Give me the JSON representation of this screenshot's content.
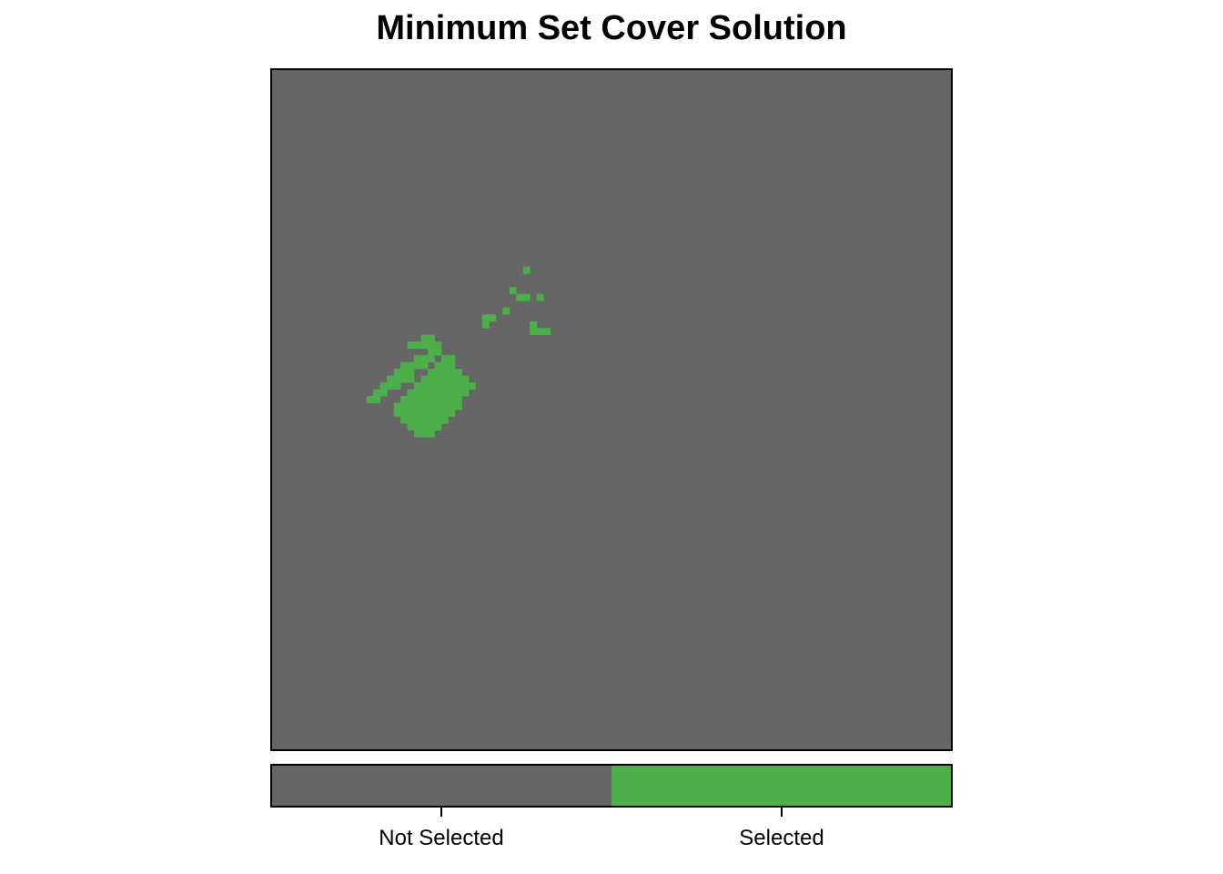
{
  "chart_data": {
    "type": "heatmap",
    "title": "Minimum Set Cover Solution",
    "xlabel": "",
    "ylabel": "",
    "grid": false,
    "legend": {
      "placement": "bottom",
      "entries": [
        {
          "label": "Not Selected",
          "value": 0,
          "color": "#666666"
        },
        {
          "label": "Selected",
          "value": 1,
          "color": "#4daf4a"
        }
      ]
    },
    "raster": {
      "cols": 100,
      "rows": 100,
      "values": [
        0,
        1
      ],
      "selected_cells": [
        [
          37,
          29
        ],
        [
          35,
          32
        ],
        [
          39,
          33
        ],
        [
          37,
          33
        ],
        [
          36,
          33
        ],
        [
          34,
          35
        ],
        [
          32,
          36
        ],
        [
          31,
          36
        ],
        [
          31,
          37
        ],
        [
          38,
          37
        ],
        [
          38,
          38
        ],
        [
          40,
          38
        ],
        [
          39,
          38
        ],
        [
          22,
          39
        ],
        [
          23,
          39
        ],
        [
          22,
          40
        ],
        [
          23,
          40
        ],
        [
          24,
          40
        ],
        [
          21,
          40
        ],
        [
          20,
          40
        ],
        [
          23,
          41
        ],
        [
          24,
          41
        ],
        [
          23,
          42
        ],
        [
          22,
          42
        ],
        [
          21,
          42
        ],
        [
          21,
          43
        ],
        [
          22,
          43
        ],
        [
          20,
          43
        ],
        [
          19,
          43
        ],
        [
          18,
          44
        ],
        [
          19,
          44
        ],
        [
          20,
          44
        ],
        [
          17,
          45
        ],
        [
          18,
          45
        ],
        [
          19,
          45
        ],
        [
          20,
          45
        ],
        [
          16,
          46
        ],
        [
          17,
          46
        ],
        [
          18,
          46
        ],
        [
          15,
          47
        ],
        [
          16,
          47
        ],
        [
          15,
          48
        ],
        [
          14,
          48
        ],
        [
          25,
          42
        ],
        [
          26,
          42
        ],
        [
          24,
          43
        ],
        [
          25,
          43
        ],
        [
          26,
          43
        ],
        [
          23,
          44
        ],
        [
          24,
          44
        ],
        [
          25,
          44
        ],
        [
          26,
          44
        ],
        [
          27,
          44
        ],
        [
          22,
          45
        ],
        [
          23,
          45
        ],
        [
          24,
          45
        ],
        [
          25,
          45
        ],
        [
          26,
          45
        ],
        [
          27,
          45
        ],
        [
          28,
          45
        ],
        [
          21,
          46
        ],
        [
          22,
          46
        ],
        [
          23,
          46
        ],
        [
          24,
          46
        ],
        [
          25,
          46
        ],
        [
          26,
          46
        ],
        [
          27,
          46
        ],
        [
          28,
          46
        ],
        [
          29,
          46
        ],
        [
          20,
          47
        ],
        [
          21,
          47
        ],
        [
          22,
          47
        ],
        [
          23,
          47
        ],
        [
          24,
          47
        ],
        [
          25,
          47
        ],
        [
          26,
          47
        ],
        [
          27,
          47
        ],
        [
          28,
          47
        ],
        [
          19,
          48
        ],
        [
          20,
          48
        ],
        [
          21,
          48
        ],
        [
          22,
          48
        ],
        [
          23,
          48
        ],
        [
          24,
          48
        ],
        [
          25,
          48
        ],
        [
          26,
          48
        ],
        [
          27,
          48
        ],
        [
          18,
          49
        ],
        [
          19,
          49
        ],
        [
          20,
          49
        ],
        [
          21,
          49
        ],
        [
          22,
          49
        ],
        [
          23,
          49
        ],
        [
          24,
          49
        ],
        [
          25,
          49
        ],
        [
          26,
          49
        ],
        [
          27,
          49
        ],
        [
          18,
          50
        ],
        [
          19,
          50
        ],
        [
          20,
          50
        ],
        [
          21,
          50
        ],
        [
          22,
          50
        ],
        [
          23,
          50
        ],
        [
          24,
          50
        ],
        [
          25,
          50
        ],
        [
          26,
          50
        ],
        [
          19,
          51
        ],
        [
          20,
          51
        ],
        [
          21,
          51
        ],
        [
          22,
          51
        ],
        [
          23,
          51
        ],
        [
          24,
          51
        ],
        [
          25,
          51
        ],
        [
          20,
          52
        ],
        [
          21,
          52
        ],
        [
          22,
          52
        ],
        [
          23,
          52
        ],
        [
          24,
          52
        ],
        [
          21,
          53
        ],
        [
          22,
          53
        ],
        [
          23,
          53
        ]
      ]
    }
  }
}
